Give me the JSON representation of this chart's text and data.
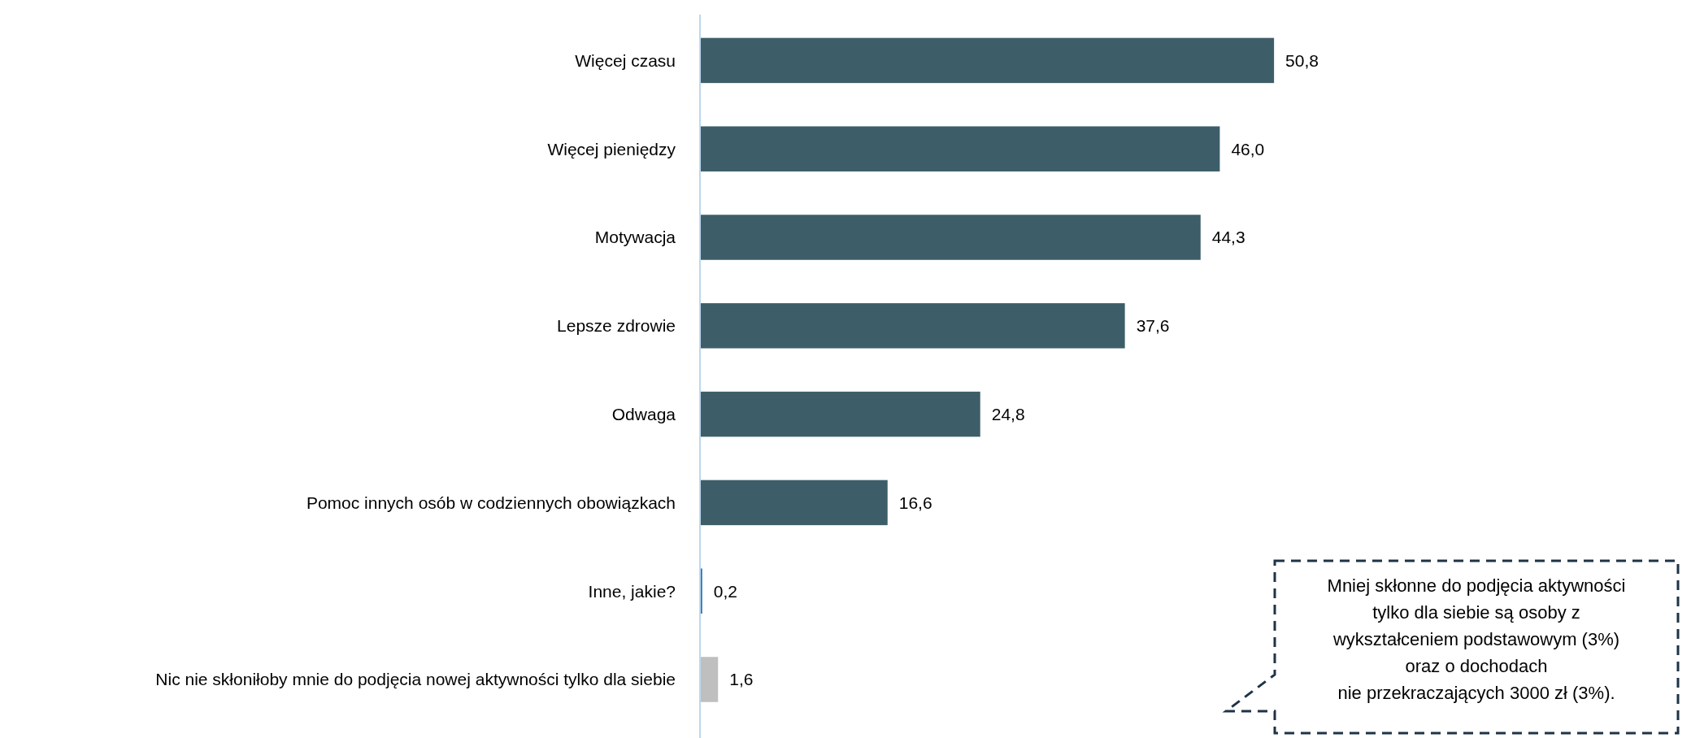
{
  "chart_data": {
    "type": "bar",
    "orientation": "horizontal",
    "categories": [
      "Więcej czasu",
      "Więcej pieniędzy",
      "Motywacja",
      "Lepsze zdrowie",
      "Odwaga",
      "Pomoc innych osób w codziennych obowiązkach",
      "Inne, jakie?",
      "Nic nie skłoniłoby mnie do podjęcia nowej aktywności tylko dla siebie"
    ],
    "values": [
      50.8,
      46.0,
      44.3,
      37.6,
      24.8,
      16.6,
      0.2,
      1.6
    ],
    "value_labels": [
      "50,8",
      "46,0",
      "44,3",
      "37,6",
      "24,8",
      "16,6",
      "0,2",
      "1,6"
    ],
    "colors": [
      "#3d5e69",
      "#3d5e69",
      "#3d5e69",
      "#3d5e69",
      "#3d5e69",
      "#3d5e69",
      "#2e75b6",
      "#bfbfbf"
    ],
    "annotations": [
      "Mniej skłonne do podjęcia aktywności\ntylko dla siebie są osoby z\nwykształceniem podstawowym (3%)\noraz o dochodach\nnie przekraczających 3000 zł (3%)."
    ]
  }
}
